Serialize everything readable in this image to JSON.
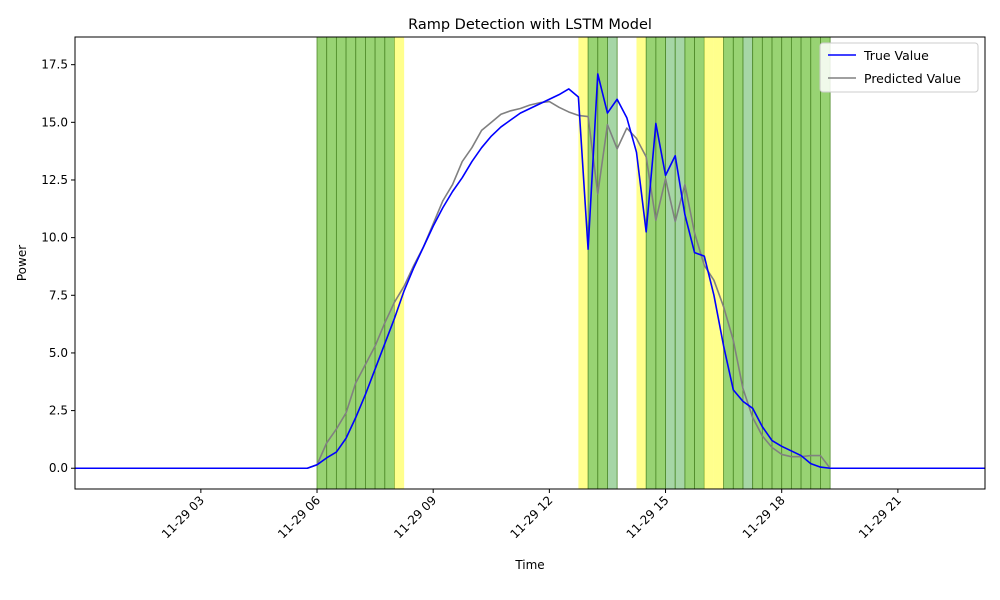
{
  "chart_data": {
    "type": "line",
    "title": "Ramp Detection with LSTM Model",
    "xlabel": "Time",
    "ylabel": "Power",
    "x_range_hours": [
      -0.25,
      23.25
    ],
    "ylim": [
      -0.9,
      18.7
    ],
    "x_ticks": [
      {
        "hour": 3,
        "label": "11-29 03"
      },
      {
        "hour": 6,
        "label": "11-29 06"
      },
      {
        "hour": 9,
        "label": "11-29 09"
      },
      {
        "hour": 12,
        "label": "11-29 12"
      },
      {
        "hour": 15,
        "label": "11-29 15"
      },
      {
        "hour": 18,
        "label": "11-29 18"
      },
      {
        "hour": 21,
        "label": "11-29 21"
      }
    ],
    "y_ticks": [
      {
        "value": 0.0,
        "label": "0.0"
      },
      {
        "value": 2.5,
        "label": "2.5"
      },
      {
        "value": 5.0,
        "label": "5.0"
      },
      {
        "value": 7.5,
        "label": "7.5"
      },
      {
        "value": 10.0,
        "label": "10.0"
      },
      {
        "value": 12.5,
        "label": "12.5"
      },
      {
        "value": 15.0,
        "label": "15.0"
      },
      {
        "value": 17.5,
        "label": "17.5"
      }
    ],
    "grid": false,
    "legend": "top-right",
    "colors": {
      "true_value": "#0000ff",
      "predicted_value": "#808080",
      "band_yellow": "#ffff66",
      "band_green": "#7ec850",
      "band_lightgreen": "#90cc90"
    },
    "series": [
      {
        "name": "True Value",
        "x": [
          -0.25,
          5.25,
          5.5,
          5.75,
          6.0,
          6.25,
          6.5,
          6.75,
          7.0,
          7.25,
          7.5,
          7.75,
          8.0,
          8.25,
          8.5,
          8.75,
          9.0,
          9.25,
          9.5,
          9.75,
          10.0,
          10.25,
          10.5,
          10.75,
          11.0,
          11.25,
          11.5,
          11.75,
          12.0,
          12.25,
          12.5,
          12.75,
          13.0,
          13.25,
          13.5,
          13.75,
          14.0,
          14.25,
          14.5,
          14.75,
          15.0,
          15.25,
          15.5,
          15.75,
          16.0,
          16.25,
          16.5,
          16.75,
          17.0,
          17.25,
          17.5,
          17.75,
          18.0,
          18.25,
          18.5,
          18.75,
          19.0,
          19.25,
          19.5,
          23.25
        ],
        "y": [
          0,
          0,
          0,
          0,
          0.15,
          0.45,
          0.7,
          1.3,
          2.2,
          3.2,
          4.3,
          5.4,
          6.5,
          7.7,
          8.7,
          9.6,
          10.5,
          11.3,
          12.0,
          12.6,
          13.3,
          13.9,
          14.4,
          14.8,
          15.1,
          15.4,
          15.6,
          15.8,
          16.0,
          16.2,
          16.45,
          16.1,
          9.5,
          17.1,
          15.4,
          16.0,
          15.2,
          13.7,
          10.25,
          14.95,
          12.7,
          13.55,
          11.0,
          9.35,
          9.2,
          7.5,
          5.3,
          3.4,
          2.9,
          2.6,
          1.8,
          1.2,
          0.95,
          0.75,
          0.55,
          0.2,
          0.05,
          0,
          0,
          0
        ]
      },
      {
        "name": "Predicted Value",
        "x": [
          -0.25,
          5.25,
          5.5,
          5.75,
          6.0,
          6.25,
          6.5,
          6.75,
          7.0,
          7.25,
          7.5,
          7.75,
          8.0,
          8.25,
          8.5,
          8.75,
          9.0,
          9.25,
          9.5,
          9.75,
          10.0,
          10.25,
          10.5,
          10.75,
          11.0,
          11.25,
          11.5,
          11.75,
          12.0,
          12.25,
          12.5,
          12.75,
          13.0,
          13.25,
          13.5,
          13.75,
          14.0,
          14.25,
          14.5,
          14.75,
          15.0,
          15.25,
          15.5,
          15.75,
          16.0,
          16.25,
          16.5,
          16.75,
          17.0,
          17.25,
          17.5,
          17.75,
          18.0,
          18.25,
          18.5,
          18.75,
          19.0,
          19.25,
          19.5,
          23.25
        ],
        "y": [
          0,
          0,
          0,
          0,
          0.15,
          1.1,
          1.7,
          2.4,
          3.7,
          4.5,
          5.3,
          6.3,
          7.2,
          7.9,
          8.8,
          9.6,
          10.6,
          11.6,
          12.3,
          13.3,
          13.9,
          14.65,
          15.0,
          15.35,
          15.5,
          15.6,
          15.75,
          15.85,
          15.9,
          15.65,
          15.45,
          15.3,
          15.25,
          11.9,
          14.9,
          13.85,
          14.75,
          14.3,
          13.5,
          10.75,
          12.55,
          10.7,
          12.3,
          10.2,
          8.8,
          8.15,
          7.0,
          5.55,
          3.45,
          2.2,
          1.4,
          0.9,
          0.6,
          0.5,
          0.5,
          0.55,
          0.55,
          0,
          0,
          0
        ]
      }
    ],
    "bands": [
      {
        "start": 6.0,
        "end": 6.25,
        "kind": "green"
      },
      {
        "start": 6.25,
        "end": 6.5,
        "kind": "green"
      },
      {
        "start": 6.5,
        "end": 6.75,
        "kind": "green"
      },
      {
        "start": 6.75,
        "end": 7.0,
        "kind": "green"
      },
      {
        "start": 7.0,
        "end": 7.25,
        "kind": "green"
      },
      {
        "start": 7.25,
        "end": 7.5,
        "kind": "green"
      },
      {
        "start": 7.5,
        "end": 7.75,
        "kind": "green"
      },
      {
        "start": 7.75,
        "end": 8.0,
        "kind": "green"
      },
      {
        "start": 8.0,
        "end": 8.25,
        "kind": "yellow"
      },
      {
        "start": 12.75,
        "end": 13.0,
        "kind": "yellow"
      },
      {
        "start": 13.0,
        "end": 13.25,
        "kind": "green"
      },
      {
        "start": 13.25,
        "end": 13.5,
        "kind": "green"
      },
      {
        "start": 13.5,
        "end": 13.75,
        "kind": "lightgreen"
      },
      {
        "start": 14.25,
        "end": 14.5,
        "kind": "yellow"
      },
      {
        "start": 14.5,
        "end": 14.75,
        "kind": "green"
      },
      {
        "start": 14.75,
        "end": 15.0,
        "kind": "green"
      },
      {
        "start": 15.0,
        "end": 15.25,
        "kind": "lightgreen"
      },
      {
        "start": 15.25,
        "end": 15.5,
        "kind": "lightgreen"
      },
      {
        "start": 15.5,
        "end": 15.75,
        "kind": "green"
      },
      {
        "start": 15.75,
        "end": 16.0,
        "kind": "green"
      },
      {
        "start": 16.0,
        "end": 16.25,
        "kind": "yellow"
      },
      {
        "start": 16.25,
        "end": 16.5,
        "kind": "yellow"
      },
      {
        "start": 16.5,
        "end": 16.75,
        "kind": "green"
      },
      {
        "start": 16.75,
        "end": 17.0,
        "kind": "green"
      },
      {
        "start": 17.0,
        "end": 17.25,
        "kind": "lightgreen"
      },
      {
        "start": 17.25,
        "end": 17.5,
        "kind": "green"
      },
      {
        "start": 17.5,
        "end": 17.75,
        "kind": "green"
      },
      {
        "start": 17.75,
        "end": 18.0,
        "kind": "green"
      },
      {
        "start": 18.0,
        "end": 18.25,
        "kind": "green"
      },
      {
        "start": 18.25,
        "end": 18.5,
        "kind": "green"
      },
      {
        "start": 18.5,
        "end": 18.75,
        "kind": "green"
      },
      {
        "start": 18.75,
        "end": 19.0,
        "kind": "green"
      },
      {
        "start": 19.0,
        "end": 19.25,
        "kind": "green"
      }
    ]
  }
}
